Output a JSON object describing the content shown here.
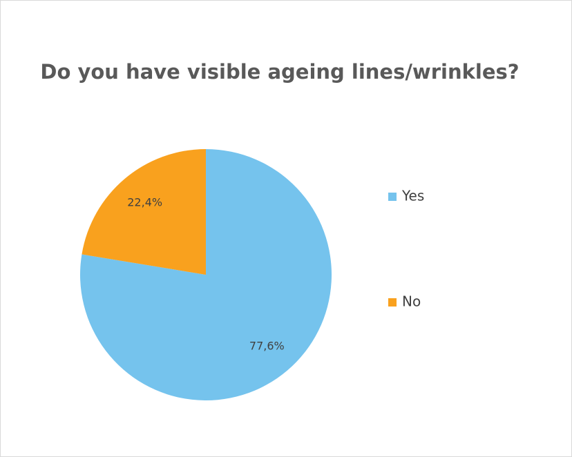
{
  "chart_data": {
    "type": "pie",
    "title": "Do you have visible ageing lines/wrinkles?",
    "categories": [
      "Yes",
      "No"
    ],
    "values": [
      77.6,
      22.4
    ],
    "value_labels": [
      "77,6%",
      "22,4%"
    ],
    "colors": [
      "#75c3ed",
      "#f9a11e"
    ],
    "legend": "right"
  }
}
